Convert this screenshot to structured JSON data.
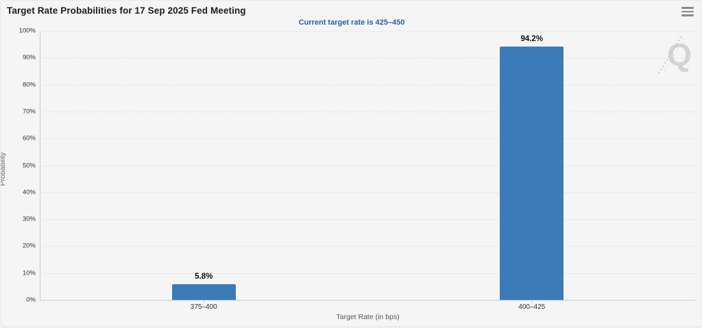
{
  "header": {
    "title": "Target Rate Probabilities for 17 Sep 2025 Fed Meeting",
    "menu_icon": "hamburger-menu-icon"
  },
  "chart_data": {
    "type": "bar",
    "subtitle": "Current target rate is 425–450",
    "categories": [
      "375–400",
      "400–425"
    ],
    "values": [
      5.8,
      94.2
    ],
    "value_labels": [
      "5.8%",
      "94.2%"
    ],
    "xlabel": "Target Rate (in bps)",
    "ylabel": "Probability",
    "ylim": [
      0,
      100
    ],
    "ytick_step": 10,
    "ytick_labels": [
      "0%",
      "10%",
      "20%",
      "30%",
      "40%",
      "50%",
      "60%",
      "70%",
      "80%",
      "90%",
      "100%"
    ],
    "grid": "horizontal-dotted",
    "legend": "none",
    "bar_color": "#3d7bb8"
  },
  "watermark": {
    "letter": "Q"
  },
  "colors": {
    "background": "#f5f5f6",
    "bar": "#3d7bb8",
    "subtitle_text": "#26619c",
    "title_text": "#1b1b1b",
    "axis_text": "#333333",
    "gridline": "#dedede",
    "axis_line": "#c9c9c9",
    "watermark_gray": "#c8c8c8",
    "watermark_blue": "#b8dcec"
  }
}
